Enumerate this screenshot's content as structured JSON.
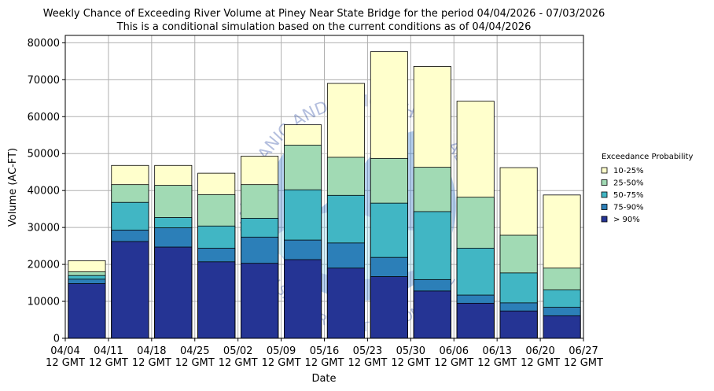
{
  "chart_data": {
    "type": "bar",
    "title": "Weekly Chance of Exceeding River Volume at Piney Near State Bridge for the period 04/04/2026 - 07/03/2026",
    "subtitle": "This is a conditional simulation based on the current conditions as of 04/04/2026",
    "xlabel": "Date",
    "ylabel": "Volume (AC-FT)",
    "ylim": [
      0,
      82000
    ],
    "yticks": [
      0,
      10000,
      20000,
      30000,
      40000,
      50000,
      60000,
      70000,
      80000
    ],
    "grid": true,
    "xtick_labels": [
      [
        "04/04",
        "12 GMT"
      ],
      [
        "04/11",
        "12 GMT"
      ],
      [
        "04/18",
        "12 GMT"
      ],
      [
        "04/25",
        "12 GMT"
      ],
      [
        "05/02",
        "12 GMT"
      ],
      [
        "05/09",
        "12 GMT"
      ],
      [
        "05/16",
        "12 GMT"
      ],
      [
        "05/23",
        "12 GMT"
      ],
      [
        "05/30",
        "12 GMT"
      ],
      [
        "06/06",
        "12 GMT"
      ],
      [
        "06/13",
        "12 GMT"
      ],
      [
        "06/20",
        "12 GMT"
      ],
      [
        "06/27",
        "12 GMT"
      ]
    ],
    "legend_title": "Exceedance Probability",
    "legend_placement": "right",
    "series": [
      {
        "name": "10-25%",
        "color": "#ffffcc",
        "values": [
          21000,
          46800,
          46800,
          44700,
          49300,
          57800,
          69000,
          77600,
          73600,
          64200,
          46200,
          38800
        ]
      },
      {
        "name": "25-50%",
        "color": "#a1dab4",
        "values": [
          18000,
          41600,
          41400,
          38900,
          41600,
          52300,
          49000,
          48700,
          46300,
          38200,
          27900,
          19000
        ]
      },
      {
        "name": "50-75%",
        "color": "#41b6c4",
        "values": [
          17000,
          36800,
          32700,
          30400,
          32500,
          40200,
          38700,
          36600,
          34300,
          24400,
          17700,
          13100
        ]
      },
      {
        "name": "75-90%",
        "color": "#2c7fb8",
        "values": [
          16000,
          29300,
          29900,
          24400,
          27400,
          26600,
          25800,
          21900,
          15900,
          11700,
          9600,
          8400
        ]
      },
      {
        "name": "> 90%",
        "color": "#253494",
        "values": [
          14800,
          26200,
          24700,
          20700,
          20300,
          21300,
          19000,
          16700,
          12800,
          9500,
          7400,
          6100
        ]
      }
    ]
  },
  "watermark": {
    "ring_text": "NATIONAL OCEANIC AND ATMOSPHERIC ADMINISTRATION",
    "center_text": "NOAA",
    "bottom_text": "U.S. DEPARTMENT OF COMMERCE"
  }
}
